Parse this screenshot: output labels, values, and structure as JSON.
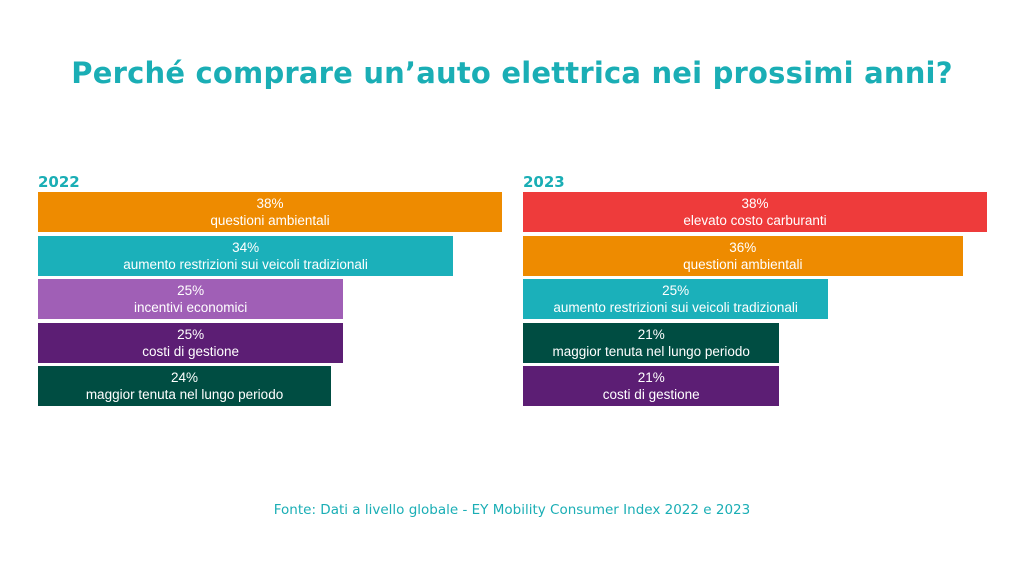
{
  "title": "Perché comprare un’auto elettrica nei prossimi anni?",
  "source": "Fonte: Dati a livello globale - EY Mobility Consumer Index 2022 e 2023",
  "chart_data": [
    {
      "type": "bar",
      "orientation": "horizontal",
      "title": "2022",
      "categories": [
        "questioni ambientali",
        "aumento restrizioni sui veicoli tradizionali",
        "incentivi economici",
        "costi di gestione",
        "maggior tenuta nel lungo periodo"
      ],
      "values": [
        38,
        34,
        25,
        25,
        24
      ],
      "value_labels": [
        "38%",
        "34%",
        "25%",
        "25%",
        "24%"
      ],
      "colors": [
        "#ee8b00",
        "#1bb0ba",
        "#a05fb6",
        "#5c1e74",
        "#004d42"
      ],
      "xlim": [
        0,
        38
      ]
    },
    {
      "type": "bar",
      "orientation": "horizontal",
      "title": "2023",
      "categories": [
        "elevato costo carburanti",
        "questioni ambientali",
        "aumento restrizioni sui veicoli tradizionali",
        "maggior tenuta nel lungo periodo",
        "costi di gestione"
      ],
      "values": [
        38,
        36,
        25,
        21,
        21
      ],
      "value_labels": [
        "38%",
        "36%",
        "25%",
        "21%",
        "21%"
      ],
      "colors": [
        "#ee3b3b",
        "#ee8b00",
        "#1bb0ba",
        "#004d42",
        "#5c1e74"
      ],
      "xlim": [
        0,
        38
      ]
    }
  ]
}
